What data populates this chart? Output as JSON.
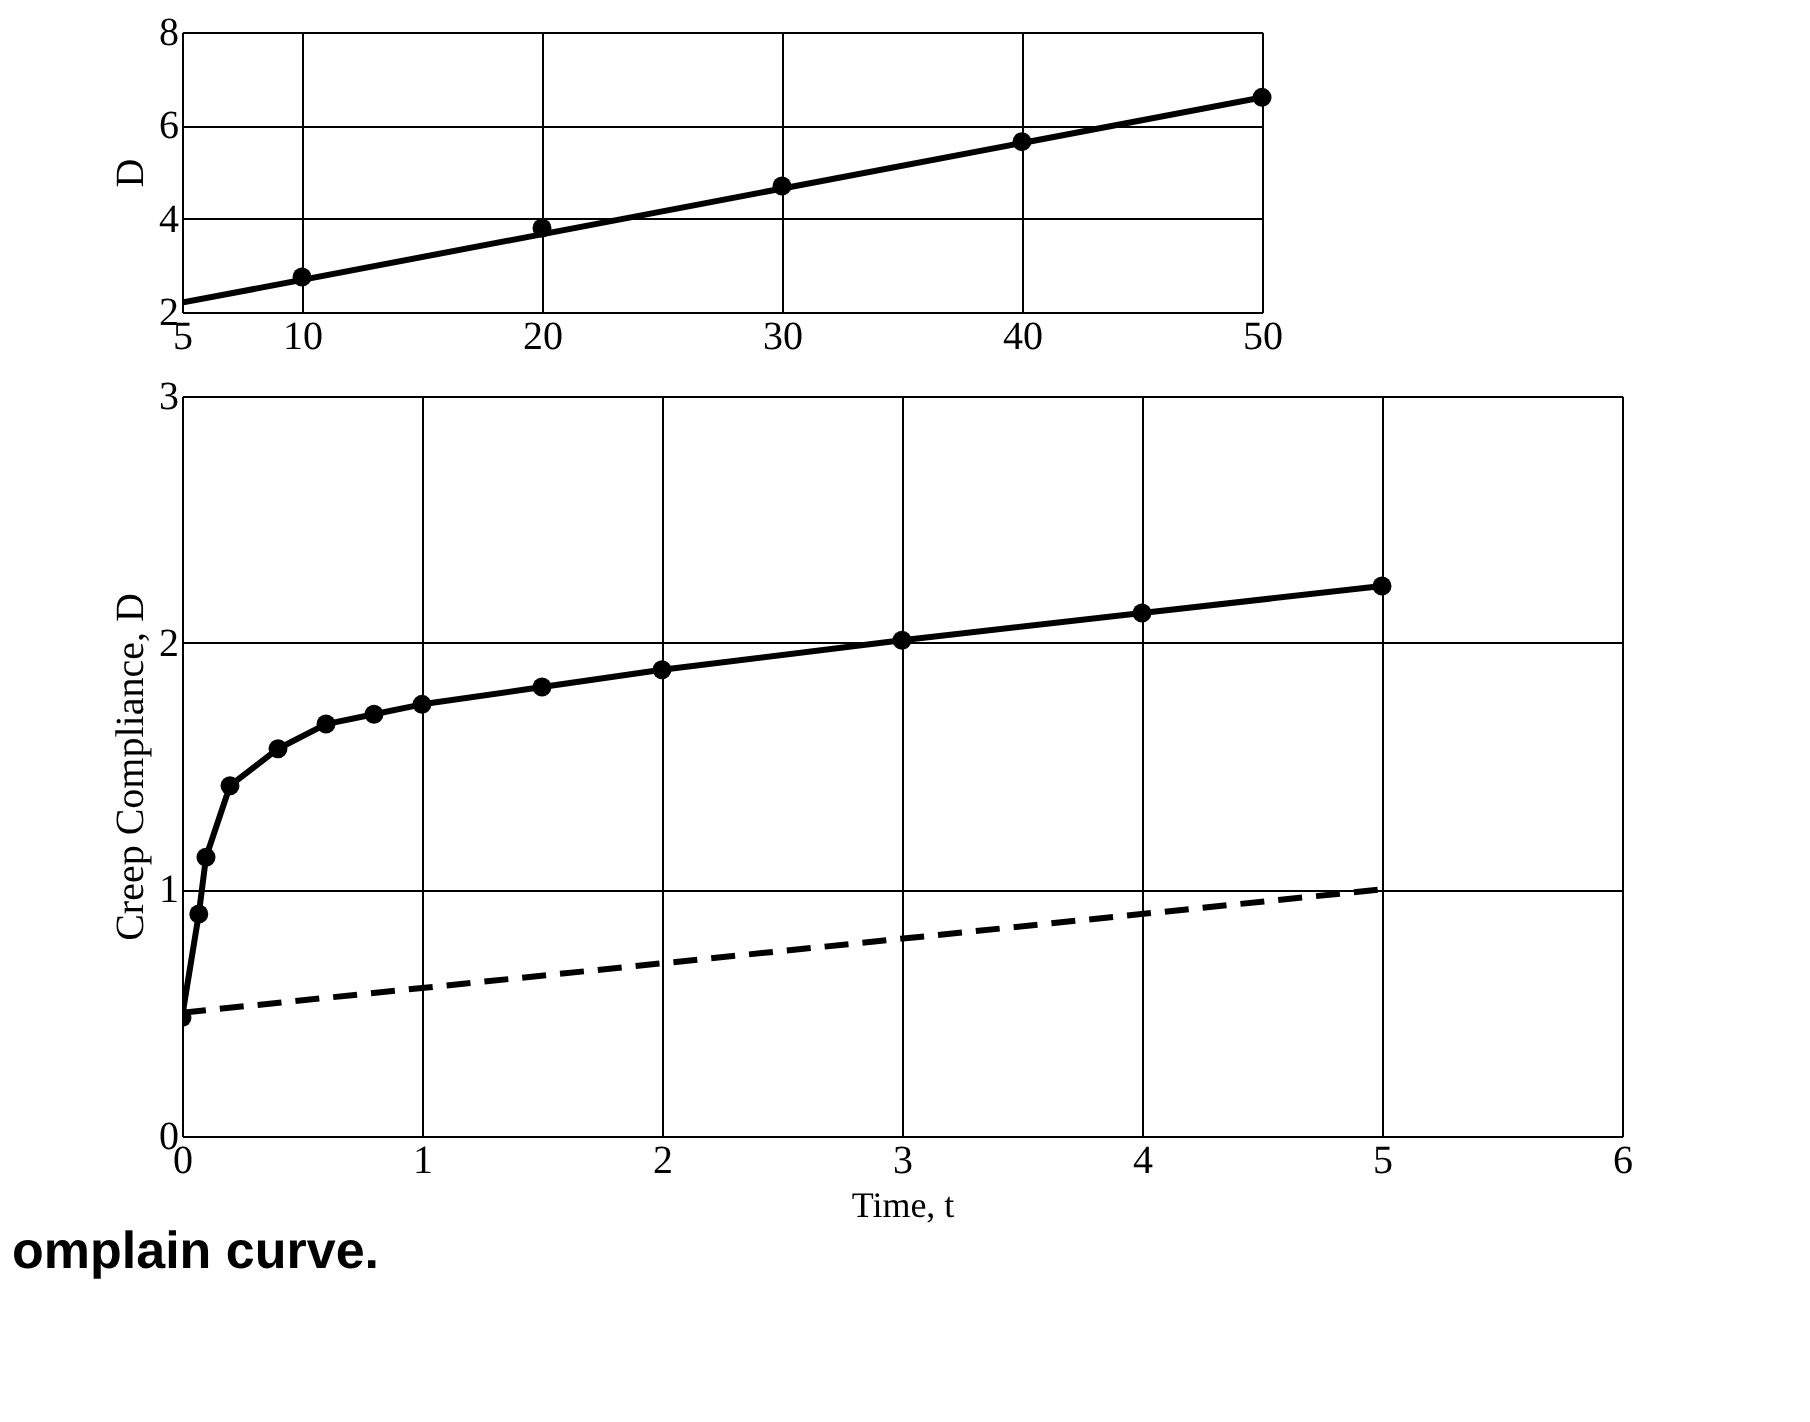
{
  "chart_data": [
    {
      "type": "line",
      "ylabel": "D",
      "xlim": [
        5,
        50
      ],
      "ylim": [
        2,
        8
      ],
      "xticks": [
        5,
        10,
        20,
        30,
        40,
        50
      ],
      "yticks": [
        2,
        4,
        6,
        8
      ],
      "grid": true,
      "series": [
        {
          "color": "#000000",
          "x": [
            5,
            50
          ],
          "values": [
            2.2,
            6.6
          ],
          "marker": "none",
          "line_style": "solid"
        },
        {
          "type": "scatter",
          "color": "#000000",
          "x": [
            10,
            20,
            30,
            40,
            50
          ],
          "values": [
            2.75,
            3.8,
            4.7,
            5.65,
            6.6
          ],
          "marker": "circle"
        }
      ]
    },
    {
      "type": "line",
      "xlabel": "Time, t",
      "ylabel": "Creep Compliance, D",
      "xlim": [
        0,
        6
      ],
      "ylim": [
        0,
        3
      ],
      "xticks": [
        0,
        1,
        2,
        3,
        4,
        5,
        6
      ],
      "yticks": [
        0,
        1,
        2,
        3
      ],
      "grid": true,
      "annotations": [
        "omplain curve."
      ],
      "series": [
        {
          "color": "#000000",
          "x": [
            0,
            0.07,
            0.1,
            0.2,
            0.4,
            0.6,
            0.8,
            1,
            1.5,
            2,
            3,
            4,
            5
          ],
          "values": [
            0.48,
            0.9,
            1.13,
            1.42,
            1.57,
            1.67,
            1.71,
            1.75,
            1.82,
            1.89,
            2.01,
            2.12,
            2.23
          ],
          "marker": "circle",
          "line_style": "solid"
        },
        {
          "color": "#000000",
          "x": [
            0,
            5
          ],
          "values": [
            0.5,
            1.0
          ],
          "marker": "none",
          "line_style": "dashed"
        }
      ]
    }
  ]
}
